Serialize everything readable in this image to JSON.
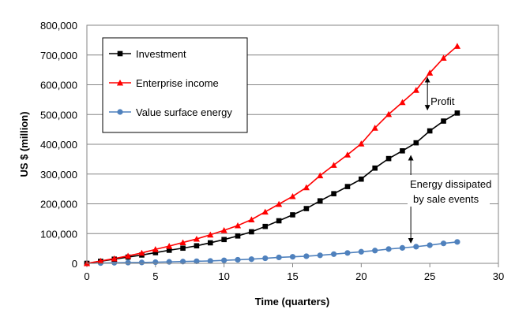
{
  "chart_data": {
    "type": "line",
    "title": "",
    "xlabel": "Time (quarters)",
    "ylabel": "US $ (million)",
    "xlim": [
      0,
      30
    ],
    "ylim": [
      0,
      800000
    ],
    "xticks": [
      0,
      5,
      10,
      15,
      20,
      25,
      30
    ],
    "xtick_labels": [
      "0",
      "5",
      "10",
      "15",
      "20",
      "25",
      "30"
    ],
    "yticks": [
      0,
      100000,
      200000,
      300000,
      400000,
      500000,
      600000,
      700000,
      800000
    ],
    "ytick_labels": [
      "0",
      "100,000",
      "200,000",
      "300,000",
      "400,000",
      "500,000",
      "600,000",
      "700,000",
      "800,000"
    ],
    "grid": "horizontal",
    "legend_position": "top-left",
    "x": [
      0,
      1,
      2,
      3,
      4,
      5,
      6,
      7,
      8,
      9,
      10,
      11,
      12,
      13,
      14,
      15,
      16,
      17,
      18,
      19,
      20,
      21,
      22,
      23,
      24,
      25,
      26,
      27
    ],
    "series": [
      {
        "name": "Investment",
        "color": "#000000",
        "marker": "square",
        "values": [
          0,
          7000,
          14000,
          21000,
          28000,
          36000,
          44000,
          51000,
          59000,
          69000,
          80000,
          92000,
          106000,
          124000,
          143000,
          163000,
          184000,
          210000,
          234000,
          258000,
          283000,
          320000,
          352000,
          378000,
          405000,
          445000,
          478000,
          505000
        ]
      },
      {
        "name": "Enterprise income",
        "color": "#ff0000",
        "marker": "triangle",
        "values": [
          0,
          8000,
          16000,
          25000,
          35000,
          47000,
          58000,
          70000,
          82000,
          96000,
          111000,
          127000,
          147000,
          173000,
          199000,
          225000,
          255000,
          295000,
          330000,
          365000,
          402000,
          455000,
          501000,
          541000,
          582000,
          640000,
          690000,
          730000
        ]
      },
      {
        "name": "Value surface energy",
        "color": "#4f81bd",
        "marker": "circle",
        "values": [
          0,
          1000,
          2000,
          2500,
          3000,
          4000,
          5000,
          6000,
          7000,
          8000,
          10000,
          12000,
          14000,
          17000,
          20000,
          22000,
          24000,
          27000,
          31000,
          35000,
          39000,
          43000,
          48000,
          52000,
          56000,
          61000,
          67000,
          72000
        ]
      }
    ],
    "annotations": [
      {
        "text": "Profit",
        "arrow_x": 25,
        "arrow_from": 505000,
        "arrow_to": 640000
      },
      {
        "text": [
          "Energy dissipated",
          "by sale events"
        ],
        "arrow_x": 23.5,
        "arrow_from": 58000,
        "arrow_to": 378000
      }
    ],
    "colors": {
      "plot_border": "#868686",
      "grid": "#868686",
      "marker_edge": "#4f81bd"
    }
  }
}
